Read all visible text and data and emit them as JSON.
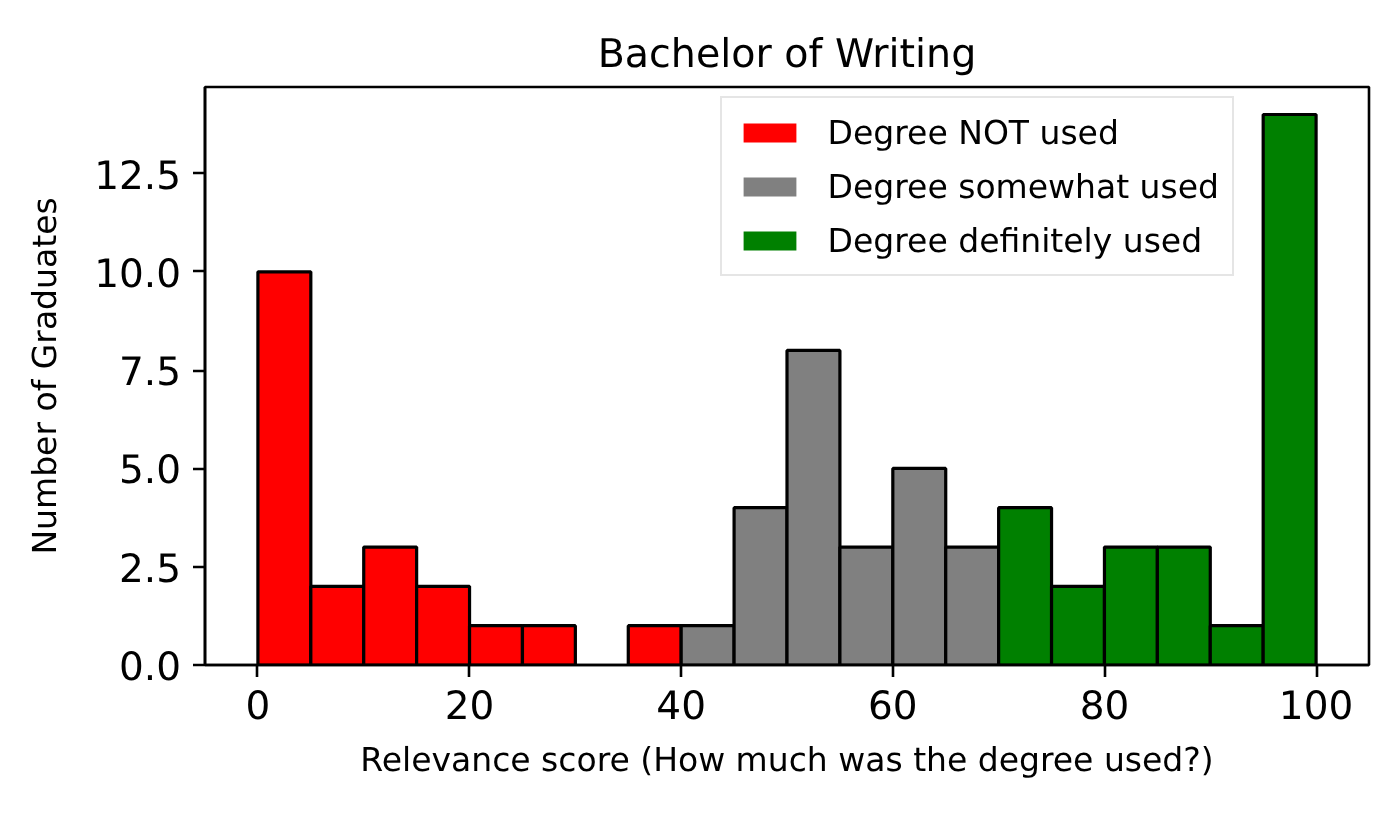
{
  "chart_data": {
    "type": "histogram",
    "title": "Bachelor of Writing",
    "xlabel": "Relevance score (How much was the degree used?)",
    "ylabel": "Number of Graduates",
    "bins": [
      0,
      5,
      10,
      15,
      20,
      25,
      30,
      35,
      40,
      45,
      50,
      55,
      60,
      65,
      70,
      75,
      80,
      85,
      90,
      95,
      100
    ],
    "series": [
      {
        "name": "Degree NOT used",
        "color": "#ff0000",
        "values": [
          10,
          2,
          3,
          2,
          1,
          1,
          null,
          1,
          null,
          null,
          null,
          null,
          null,
          null,
          null,
          null,
          null,
          null,
          null,
          null
        ]
      },
      {
        "name": "Degree somewhat used",
        "color": "#808080",
        "values": [
          null,
          null,
          null,
          null,
          null,
          null,
          null,
          null,
          1,
          4,
          8,
          3,
          5,
          3,
          null,
          null,
          null,
          null,
          null,
          null
        ]
      },
      {
        "name": "Degree definitely used",
        "color": "#008000",
        "values": [
          null,
          null,
          null,
          null,
          null,
          null,
          null,
          null,
          null,
          null,
          null,
          null,
          null,
          null,
          4,
          2,
          3,
          3,
          1,
          14
        ]
      }
    ],
    "xlim": [
      -5,
      105
    ],
    "ylim": [
      0,
      14.7
    ],
    "xticks": [
      0,
      20,
      40,
      60,
      80,
      100
    ],
    "yticks": [
      {
        "value": 0,
        "label": "0.0"
      },
      2.5,
      {
        "value": 5,
        "label": "5.0"
      },
      7.5,
      {
        "value": 10,
        "label": "10.0"
      },
      12.5
    ],
    "grid": false,
    "legend": "top right"
  }
}
